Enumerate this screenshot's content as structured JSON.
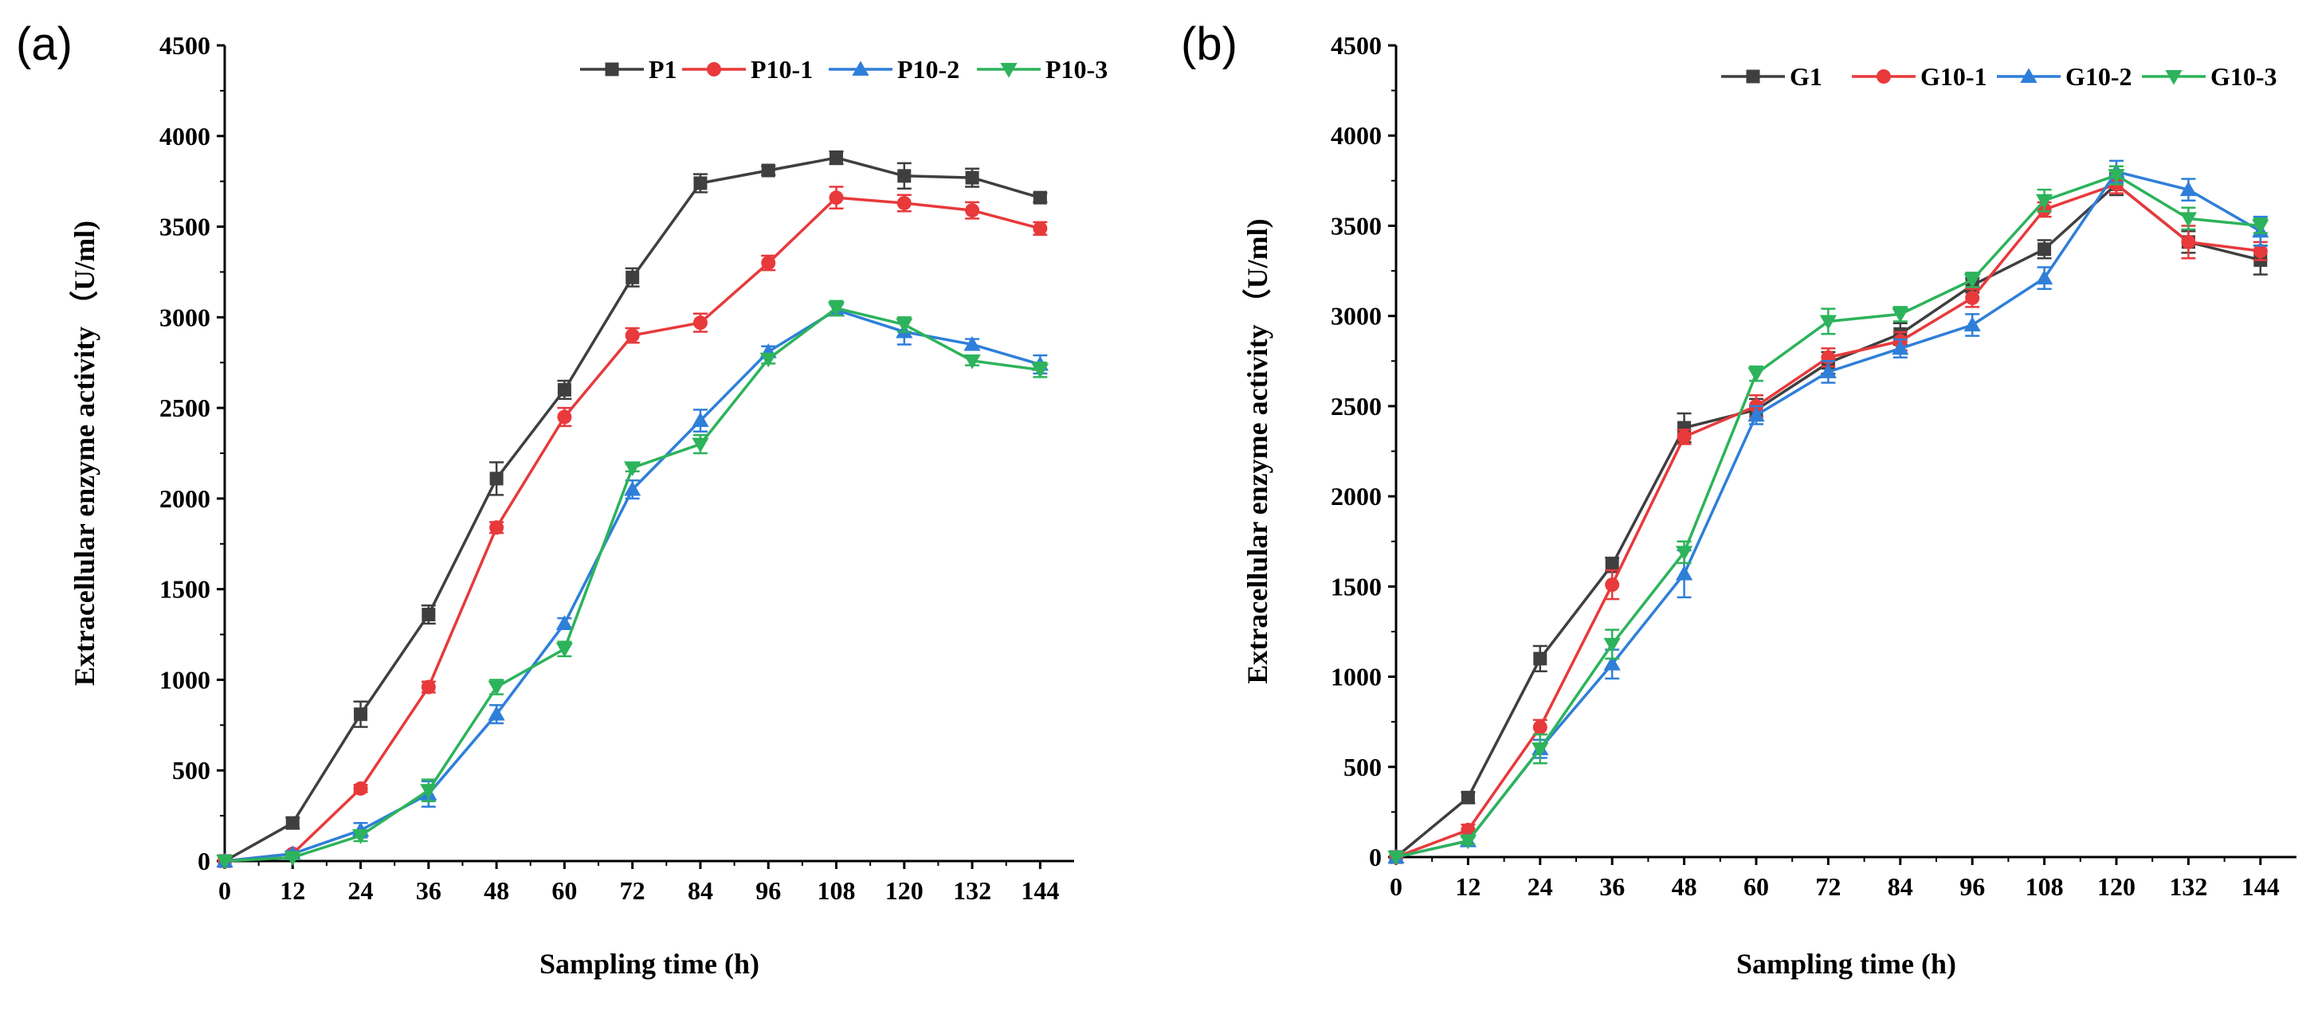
{
  "chart_data": [
    {
      "panel_label": "(a)",
      "type": "line",
      "xlabel": "Sampling time (h)",
      "ylabel": "Extracellular enzyme activity （U/ml)",
      "xlim": [
        0,
        150
      ],
      "ylim": [
        0,
        4500
      ],
      "xticks": [
        0,
        12,
        24,
        36,
        48,
        60,
        72,
        84,
        96,
        108,
        120,
        132,
        144
      ],
      "yticks": [
        0,
        500,
        1000,
        1500,
        2000,
        2500,
        3000,
        3500,
        4000,
        4500
      ],
      "legend_position": "top-right",
      "x": [
        0,
        12,
        24,
        36,
        48,
        60,
        72,
        84,
        96,
        108,
        120,
        132,
        144
      ],
      "series": [
        {
          "name": "P1",
          "color": "#3f3f3f",
          "marker": "square",
          "values": [
            0,
            210,
            810,
            1360,
            2110,
            2600,
            3220,
            3740,
            3810,
            3880,
            3780,
            3770,
            3660
          ],
          "errors": [
            0,
            30,
            70,
            50,
            90,
            50,
            50,
            50,
            25,
            35,
            70,
            50,
            25
          ]
        },
        {
          "name": "P10-1",
          "color": "#e8393b",
          "marker": "circle",
          "values": [
            0,
            40,
            400,
            960,
            1840,
            2450,
            2900,
            2970,
            3300,
            3660,
            3630,
            3590,
            3490
          ],
          "errors": [
            0,
            15,
            20,
            30,
            30,
            50,
            40,
            50,
            40,
            60,
            45,
            45,
            35
          ]
        },
        {
          "name": "P10-2",
          "color": "#2f7fd9",
          "marker": "triangle-up",
          "values": [
            0,
            40,
            170,
            370,
            810,
            1310,
            2050,
            2430,
            2810,
            3040,
            2920,
            2850,
            2740
          ],
          "errors": [
            0,
            15,
            40,
            70,
            50,
            30,
            50,
            60,
            30,
            30,
            70,
            30,
            50
          ]
        },
        {
          "name": "P10-3",
          "color": "#2db35b",
          "marker": "triangle-down",
          "values": [
            0,
            20,
            140,
            390,
            960,
            1170,
            2170,
            2300,
            2770,
            3050,
            2960,
            2760,
            2710
          ],
          "errors": [
            0,
            10,
            30,
            60,
            40,
            40,
            20,
            50,
            25,
            40,
            40,
            25,
            40
          ]
        }
      ]
    },
    {
      "panel_label": "(b)",
      "type": "line",
      "xlabel": "Sampling time (h)",
      "ylabel": "Extracellular enzyme activity （U/ml)",
      "xlim": [
        0,
        150
      ],
      "ylim": [
        0,
        4500
      ],
      "xticks": [
        0,
        12,
        24,
        36,
        48,
        60,
        72,
        84,
        96,
        108,
        120,
        132,
        144
      ],
      "yticks": [
        0,
        500,
        1000,
        1500,
        2000,
        2500,
        3000,
        3500,
        4000,
        4500
      ],
      "legend_position": "top-right",
      "x": [
        0,
        12,
        24,
        36,
        48,
        60,
        72,
        84,
        96,
        108,
        120,
        132,
        144
      ],
      "series": [
        {
          "name": "G1",
          "color": "#3f3f3f",
          "marker": "square",
          "values": [
            0,
            330,
            1100,
            1620,
            2380,
            2480,
            2740,
            2900,
            3170,
            3370,
            3730,
            3410,
            3310
          ],
          "errors": [
            0,
            30,
            70,
            40,
            80,
            60,
            60,
            60,
            40,
            50,
            60,
            60,
            80
          ]
        },
        {
          "name": "G10-1",
          "color": "#e8393b",
          "marker": "circle",
          "values": [
            0,
            150,
            720,
            1510,
            2330,
            2500,
            2770,
            2860,
            3100,
            3590,
            3730,
            3410,
            3360
          ],
          "errors": [
            0,
            30,
            40,
            80,
            40,
            60,
            50,
            50,
            50,
            40,
            50,
            90,
            50
          ]
        },
        {
          "name": "G10-2",
          "color": "#2f7fd9",
          "marker": "triangle-up",
          "values": [
            0,
            90,
            600,
            1070,
            1570,
            2450,
            2690,
            2820,
            2950,
            3210,
            3800,
            3700,
            3470
          ],
          "errors": [
            0,
            20,
            50,
            80,
            130,
            50,
            60,
            50,
            60,
            60,
            60,
            60,
            80
          ]
        },
        {
          "name": "G10-3",
          "color": "#2db35b",
          "marker": "triangle-down",
          "values": [
            0,
            90,
            600,
            1180,
            1690,
            2680,
            2970,
            3010,
            3200,
            3640,
            3780,
            3540,
            3500
          ],
          "errors": [
            0,
            20,
            80,
            80,
            60,
            40,
            70,
            40,
            40,
            60,
            50,
            60,
            40
          ]
        }
      ]
    }
  ]
}
